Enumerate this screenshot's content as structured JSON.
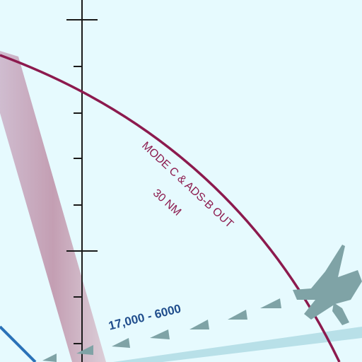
{
  "chart": {
    "mode_c_label": "MODE C & ADS-B OUT",
    "range_label": "30 NM",
    "altitude_label": "17,000 - 6000"
  },
  "colors": {
    "background": "#e6fafe",
    "mode_c_ring": "#8c1a4e",
    "altitude_text": "#1f4d8c",
    "airway_band": "#b88a9e",
    "route_arrows": "#7fa3a6",
    "aircraft_symbol": "#7fa3a6",
    "blue_line": "#2b72b8",
    "teal_band": "#b3dde6",
    "tick_marks": "#1a1a1a"
  },
  "icons": {
    "aircraft": "airport-aircraft-icon"
  }
}
